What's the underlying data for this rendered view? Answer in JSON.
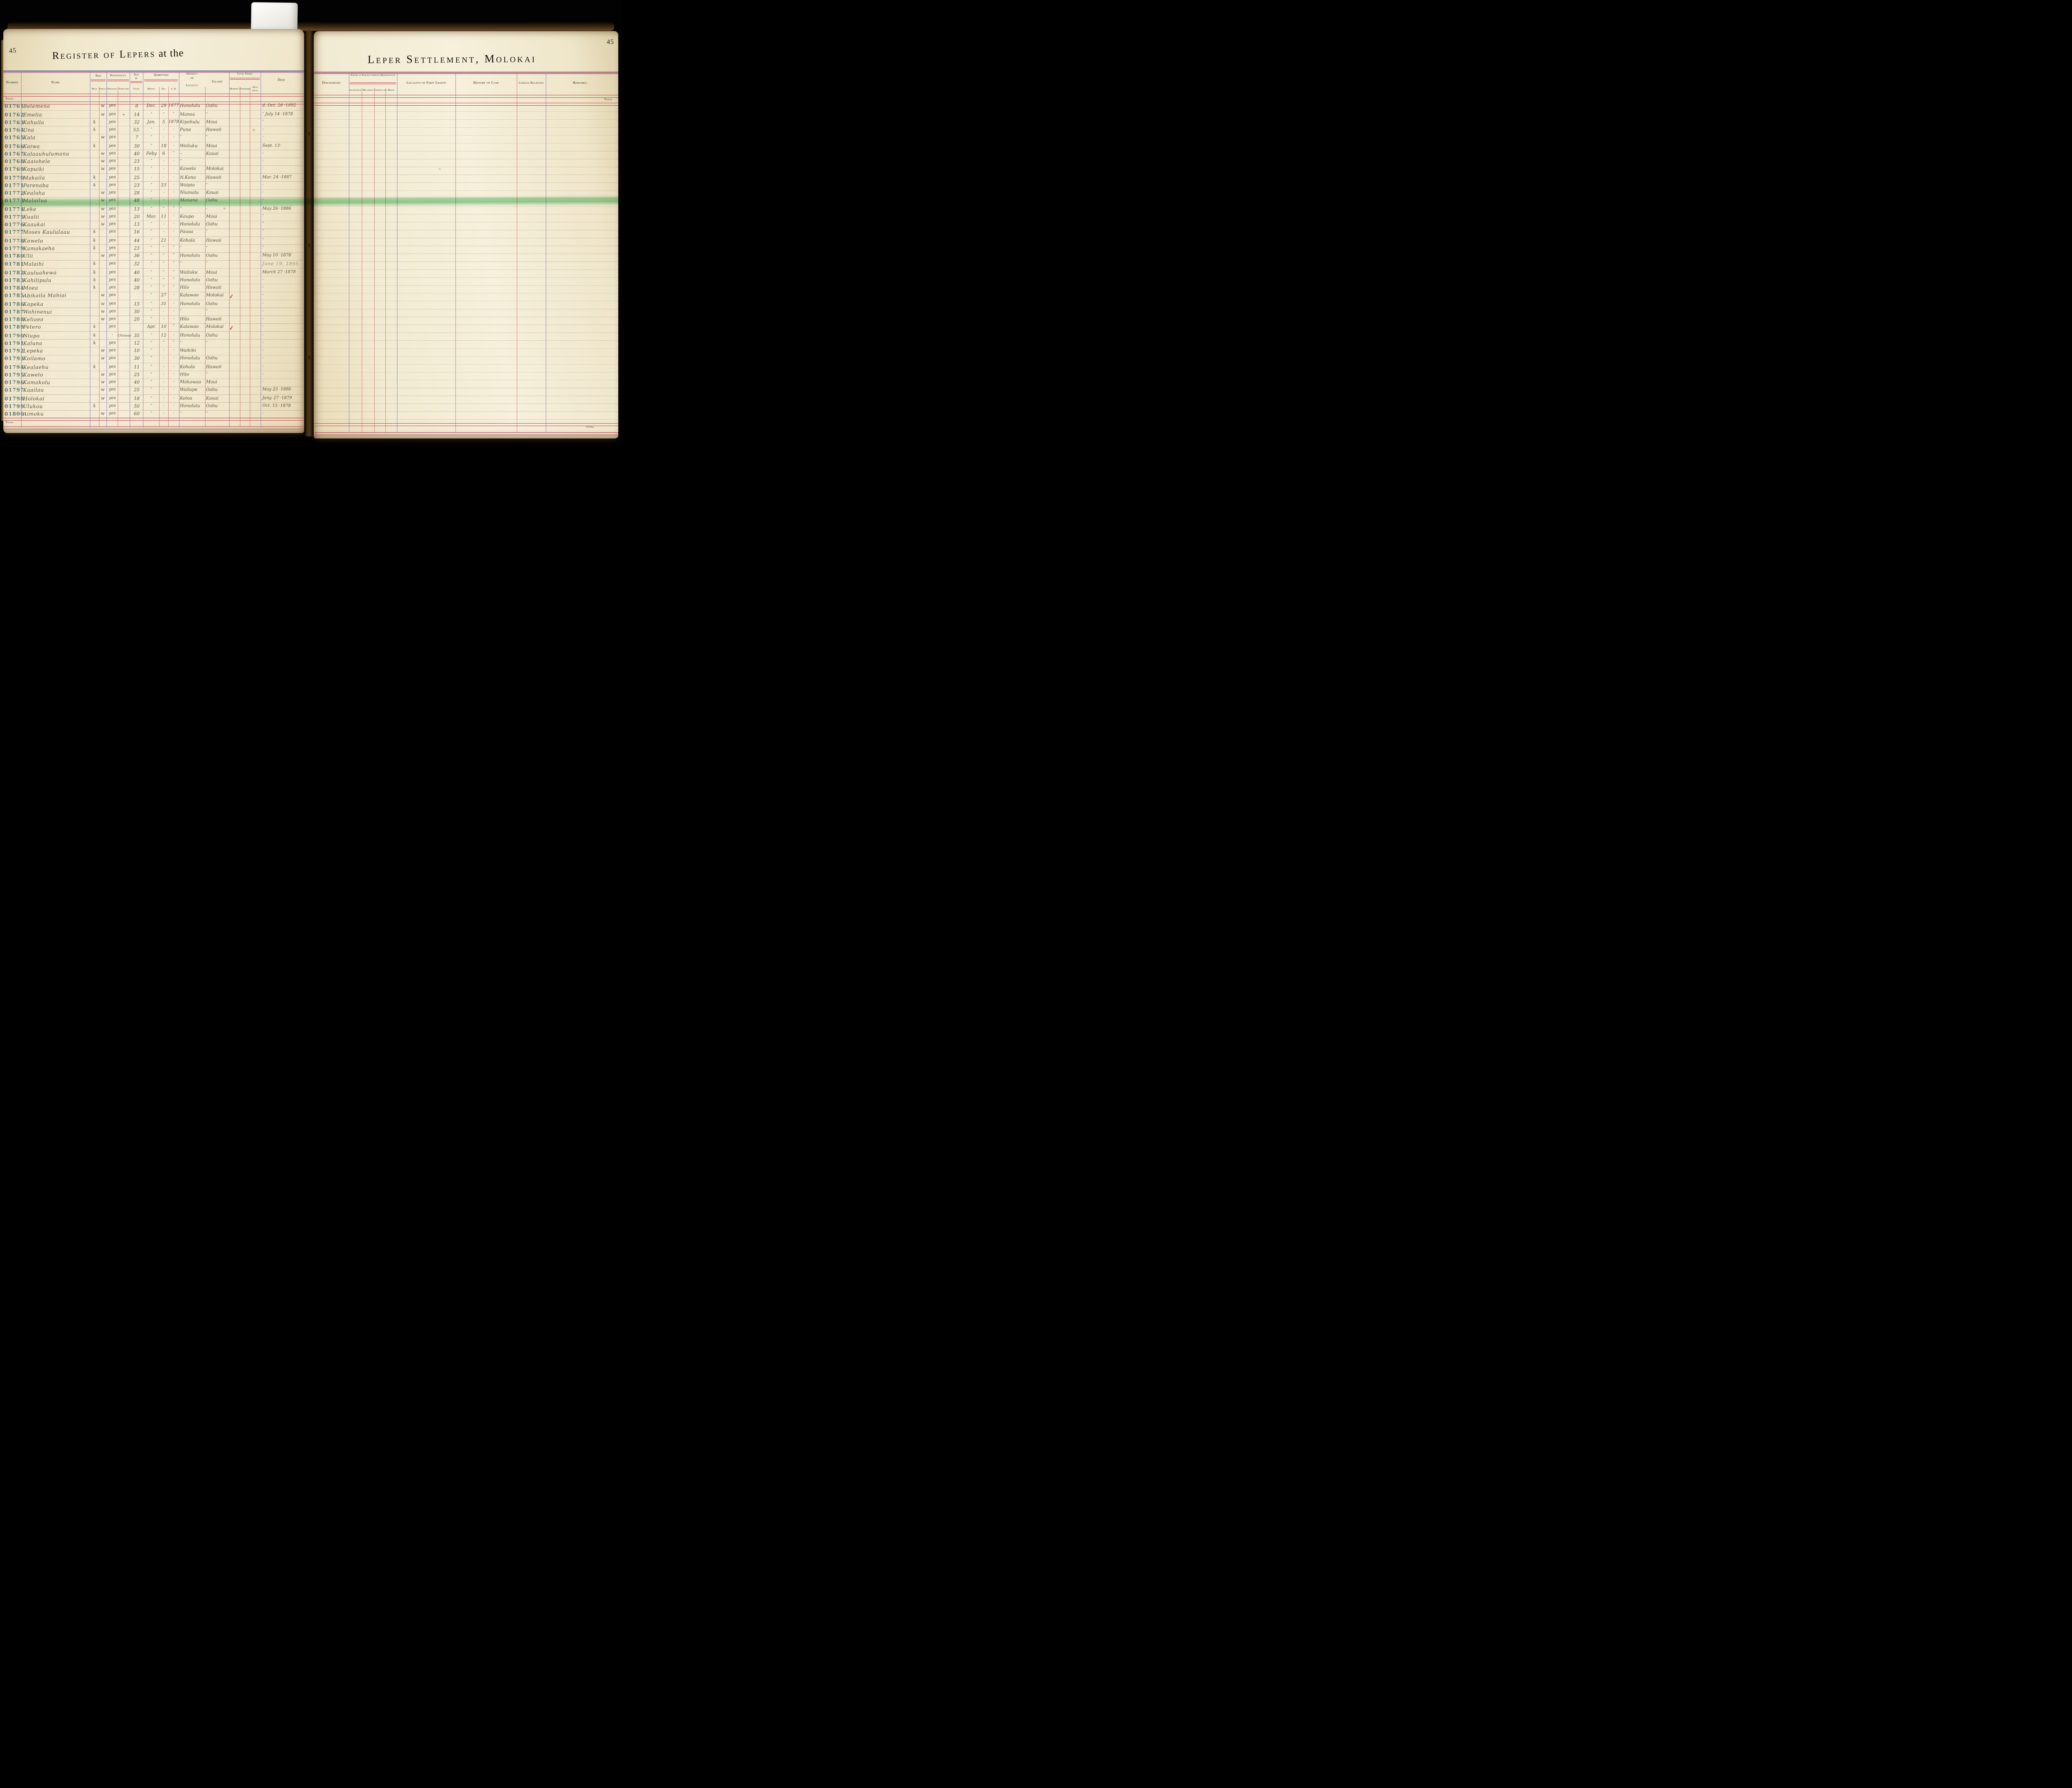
{
  "book": {
    "left_page_number": "45",
    "right_page_number": "45",
    "title_left_main": "Register of Lepers",
    "title_left_suffix": " at the",
    "title_right": "Leper Settlement, Molokai"
  },
  "labels": {
    "total": "Total"
  },
  "columns_left": {
    "number": "Number",
    "name": "Name",
    "sex": "Sex",
    "male": "Male",
    "female": "Female",
    "nationality": "Nationality",
    "hawaiian": "Hawaiian",
    "foreigner": "Foreigner",
    "age_1": "Age",
    "age_2": "in",
    "age_3": "Years",
    "admitted": "Admitted",
    "month": "Month",
    "day": "Day",
    "ad": "A. D.",
    "district_1": "District",
    "district_2": "or",
    "district_3": "Locality",
    "island": "Island",
    "civil_state": "Civil State",
    "married": "Married",
    "unmarried": "Unmarried",
    "have_issue_1": "Have",
    "have_issue_2": "Issue",
    "died": "Died"
  },
  "columns_right": {
    "discharged": "Discharged",
    "nature": "Nature of Earliest Leprous Manifestation",
    "anaesthetic": "Anaesthetic",
    "macurous": "Macurous",
    "tuberculous": "Tuberculous",
    "mixed": "Mixed",
    "locality_first_lesion": "Locality of First Lesion",
    "history_of_case": "History of Case",
    "leprous_relations": "Leprous Relations",
    "remarks": "Remarks"
  },
  "colors": {
    "highlight_green": "#92d3a3",
    "rule_purple": "#8273b9",
    "rule_red": "#c23c52",
    "stamp_teal": "#3c616b",
    "ink": "#554c3a",
    "paper": "#f2ebd3",
    "check_red": "#c13226"
  },
  "row_fields": [
    "number",
    "name",
    "male",
    "female",
    "hawaiian",
    "foreigner",
    "age",
    "month",
    "day",
    "year",
    "locality",
    "island",
    "married_check",
    "died",
    "flag"
  ],
  "rows": [
    [
      "01761",
      "Belemena",
      "",
      "w",
      "yes",
      "",
      "8",
      "Dec.",
      "29",
      "1877",
      "Honolulu",
      "Oahu",
      "",
      "d. Oct. 26 ·1892",
      ""
    ],
    [
      "01762",
      "Emelia",
      "",
      "w",
      "yes",
      "+",
      "14",
      "″",
      "″",
      "″",
      "Manoa",
      "″",
      "",
      "″ July 14 ·1878",
      ""
    ],
    [
      "01763",
      "Kahuila",
      "k",
      "",
      "yes",
      "",
      "32",
      "Jan.",
      "5",
      "1878",
      "Kipahulu",
      "Maui",
      "",
      "″",
      ""
    ],
    [
      "01764",
      "Una",
      "k",
      "",
      "yes",
      "",
      "53.",
      "″",
      "·",
      "·",
      "Puna",
      "Hawaii",
      "",
      "·",
      ""
    ],
    [
      "01765",
      "Kala",
      "",
      "w",
      "yes",
      "",
      "7",
      "″",
      "·",
      "·",
      "″",
      "″",
      "",
      "·",
      ""
    ],
    [
      "01766",
      "Kaiwa",
      "k",
      "",
      "yes",
      "",
      "30",
      "″",
      "18",
      "·",
      "Wailuku",
      "Maui",
      "",
      "Sept. 13·",
      ""
    ],
    [
      "01767",
      "Kalaauhulumanu",
      "",
      "w",
      "yes",
      "",
      "40",
      "Feby",
      "6",
      "″",
      "–",
      "Kauai",
      "",
      "·",
      ""
    ],
    [
      "01768",
      "Kaaiohele",
      "",
      "w",
      "yes",
      "",
      "23",
      "″",
      "·",
      "·",
      "″",
      "",
      "",
      "·",
      ""
    ],
    [
      "01769",
      "Kapuiki",
      "",
      "w",
      "yes",
      "",
      "15",
      "″",
      "·",
      "·",
      "Kawela",
      "Molokai",
      "",
      "·",
      ""
    ],
    [
      "01770",
      "Makaila",
      "k",
      "",
      "yes",
      "",
      "25",
      "·",
      "·",
      "·",
      "N.Kona",
      "Hawaii",
      "",
      "Mar. 24 ·1887",
      ""
    ],
    [
      "01771",
      "Parenaba",
      "k",
      "",
      "yes",
      "",
      "23",
      "″",
      "23",
      "·",
      "Waipio",
      "″",
      "",
      "·",
      ""
    ],
    [
      "01772",
      "Kealoha",
      "",
      "w",
      "yes",
      "",
      "28",
      "″",
      "·",
      "·",
      "Niumalu",
      "Kauai",
      "",
      "·",
      ""
    ],
    [
      "01773",
      "Malailua",
      "",
      "w",
      "yes",
      "",
      "48",
      "″",
      "·",
      "·",
      "Manana",
      "Oahu",
      "",
      "·",
      "hl"
    ],
    [
      "01774",
      "Leke",
      "",
      "w",
      "yes",
      "",
      "13",
      "″",
      "″",
      "″",
      "″",
      "·",
      "",
      "May 26 ·1886",
      ""
    ],
    [
      "01775",
      "Kualii",
      "",
      "w",
      "yes",
      "",
      "20",
      "Mar.",
      "11",
      "·",
      "Kaupo",
      "Maui",
      "",
      "″",
      ""
    ],
    [
      "01776",
      "Kaaukai",
      "",
      "w",
      "yes",
      "",
      "13",
      "″",
      "·",
      "·",
      "Honolulu",
      "Oahu",
      "",
      "″",
      ""
    ],
    [
      "01777",
      "Moses Kaululaau",
      "k",
      "",
      "yes",
      "",
      "16",
      "″",
      "·",
      "·",
      "Pauoa",
      "″",
      "",
      "″",
      ""
    ],
    [
      "01778",
      "Kawelo",
      "k",
      "",
      "yes",
      "",
      "44",
      "″",
      "21",
      "·",
      "Kohala",
      "Hawaii",
      "",
      "″",
      ""
    ],
    [
      "01779",
      "Kamakaeha",
      "k",
      "",
      "yes",
      "",
      "23",
      "″",
      "″",
      "″",
      "″",
      "″",
      "",
      "″",
      ""
    ],
    [
      "01780",
      "Ulii",
      "",
      "w",
      "yes",
      "",
      "36",
      "″",
      "″",
      "″",
      "Honolulu",
      "Oahu",
      "",
      "May 10 ·1878",
      ""
    ],
    [
      "01781",
      "Malaihi",
      "k",
      "",
      "yes",
      "",
      "32",
      "″",
      "″",
      "″",
      "″",
      "″",
      "",
      "June 19, 1895",
      "pencil"
    ],
    [
      "01782",
      "Kauluahewa",
      "k",
      "",
      "yes",
      "",
      "40",
      "″",
      "″",
      "″",
      "Wailuku",
      "Maui",
      "",
      "March 27 ·1878",
      ""
    ],
    [
      "01783",
      "Kahilipulu",
      "k",
      "",
      "yes",
      "",
      "40",
      "″",
      "″",
      "″",
      "Honolulu",
      "Oahu",
      "",
      "·",
      ""
    ],
    [
      "01784",
      "Moea",
      "k",
      "",
      "yes",
      "",
      "28",
      "″",
      "″",
      "″",
      "Hilo",
      "Hawaii",
      "",
      "·",
      ""
    ],
    [
      "01785",
      "Abikaila Mahiai",
      "",
      "w",
      "yes",
      "",
      "",
      "″",
      "27",
      "·",
      "Kalawao",
      "Molokai",
      "1",
      "·",
      ""
    ],
    [
      "01786",
      "Kapeka",
      "",
      "w",
      "yes",
      "",
      "15",
      "″",
      "31",
      "·",
      "Honolulu",
      "Oahu",
      "",
      "·",
      ""
    ],
    [
      "01787",
      "Wahinenui",
      "",
      "w",
      "yes",
      "",
      "30",
      "″",
      "·",
      "·",
      "″",
      "″",
      "",
      "·",
      ""
    ],
    [
      "01788",
      "Keliaea",
      "",
      "w",
      "yes",
      "",
      "20",
      "″",
      "·",
      "·",
      "Hilo",
      "Hawaii",
      "",
      "·",
      ""
    ],
    [
      "01789",
      "Petero",
      "k",
      "",
      "yes",
      "",
      "",
      "Apr.",
      "10",
      "″",
      "Kalawao",
      "Molokai",
      "1",
      "·",
      ""
    ],
    [
      "01790",
      "Niupo",
      "k",
      "",
      "·",
      "Chinese",
      "35",
      "″",
      "12",
      "·",
      "Honolulu",
      "Oahu",
      "",
      "·",
      ""
    ],
    [
      "01791",
      "Kaluna",
      "k",
      "",
      "yes",
      "",
      "12",
      "″",
      "″",
      "″",
      "″",
      "″",
      "",
      "·",
      ""
    ],
    [
      "01792",
      "Lepeka",
      "",
      "w",
      "yes",
      "",
      "10",
      "″",
      "·",
      "·",
      "Waikiki",
      "",
      "",
      "·",
      ""
    ],
    [
      "01793",
      "Koilamo",
      "",
      "w",
      "yes",
      "",
      "30",
      "″",
      "·",
      "·",
      "Honolulu",
      "Oahu",
      "",
      "·",
      ""
    ],
    [
      "01794",
      "Kealaehu",
      "k",
      "",
      "yes",
      "",
      "11",
      "″",
      "·",
      "·",
      "Kohala",
      "Hawaii",
      "",
      "·",
      ""
    ],
    [
      "01795",
      "Kawelo",
      "",
      "w",
      "yes",
      "",
      "25",
      "″",
      "·",
      "·",
      "Hilo",
      "″",
      "",
      "·",
      ""
    ],
    [
      "01796",
      "Kamakolu",
      "",
      "w",
      "yes",
      "",
      "40",
      "″",
      "·",
      "·",
      "Makawao",
      "Maui",
      "",
      "·",
      ""
    ],
    [
      "01797",
      "Kaailau",
      "",
      "w",
      "yes",
      "",
      "25",
      "″",
      "·",
      "·",
      "Wailupe",
      "Oahu",
      "",
      "May 25 ·1886",
      ""
    ],
    [
      "01798",
      "Holokai",
      "",
      "w",
      "yes",
      "",
      "18",
      "″",
      "·",
      "·",
      "Koloa",
      "Kauai",
      "",
      "Jany. 27 ·1879",
      ""
    ],
    [
      "01799",
      "Ulukou",
      "k",
      "",
      "yes",
      "",
      "50",
      "″",
      "·",
      "·",
      "Honolulu",
      "Oahu",
      "",
      "Oct. 15 ·1878",
      ""
    ],
    [
      "01800",
      "Aimoku",
      "",
      "w",
      "yes",
      "",
      "60",
      "″",
      "·",
      "·",
      "″",
      "″",
      "",
      "·",
      ""
    ]
  ]
}
